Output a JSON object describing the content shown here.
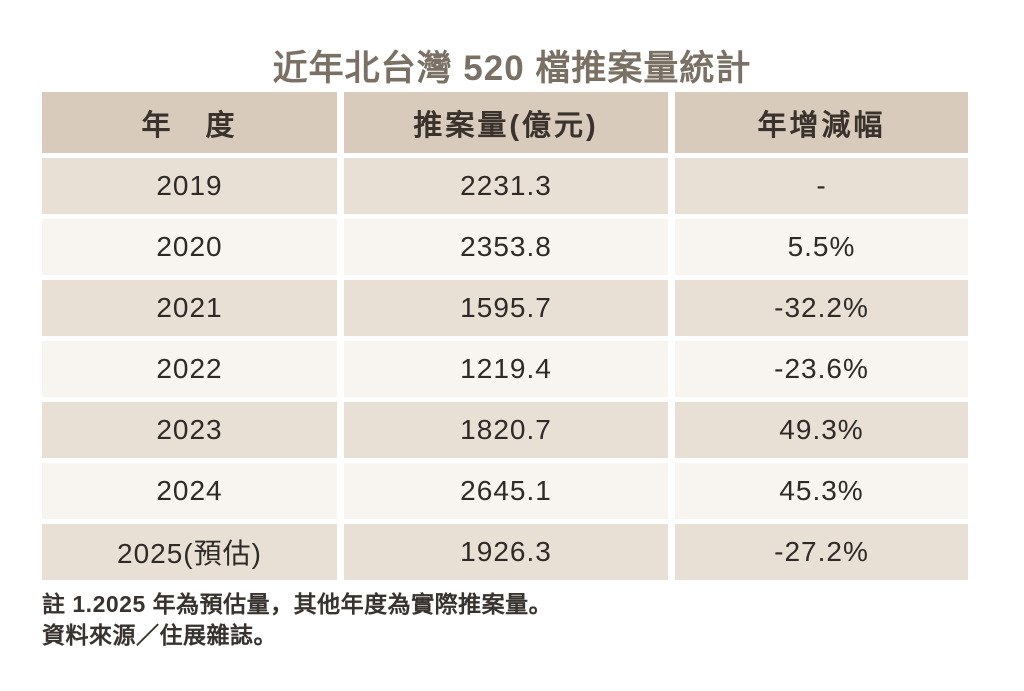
{
  "title": "近年北台灣 520 檔推案量統計",
  "table": {
    "headers": [
      "年　度",
      "推案量(億元)",
      "年增減幅"
    ],
    "rows": [
      {
        "year": "2019",
        "volume": "2231.3",
        "yoy": "-"
      },
      {
        "year": "2020",
        "volume": "2353.8",
        "yoy": "5.5%"
      },
      {
        "year": "2021",
        "volume": "1595.7",
        "yoy": "-32.2%"
      },
      {
        "year": "2022",
        "volume": "1219.4",
        "yoy": "-23.6%"
      },
      {
        "year": "2023",
        "volume": "1820.7",
        "yoy": "49.3%"
      },
      {
        "year": "2024",
        "volume": "2645.1",
        "yoy": "45.3%"
      },
      {
        "year": "2025(預估)",
        "volume": "1926.3",
        "yoy": "-27.2%"
      }
    ]
  },
  "notes": [
    "註 1.2025 年為預估量，其他年度為實際推案量。",
    "資料來源／住展雜誌。"
  ],
  "colors": {
    "background": "#ffffff",
    "title_text": "#7b7064",
    "header_bg": "#d8cbbc",
    "header_text": "#3a332d",
    "row_dark_bg": "#e8e0d5",
    "row_light_bg": "#f8f4ef",
    "cell_text": "#2d2a27",
    "note_text": "#38332e"
  },
  "chart_data": {
    "type": "table",
    "title": "近年北台灣 520 檔推案量統計",
    "columns": [
      "年度",
      "推案量(億元)",
      "年增減幅"
    ],
    "categories": [
      "2019",
      "2020",
      "2021",
      "2022",
      "2023",
      "2024",
      "2025(預估)"
    ],
    "series": [
      {
        "name": "推案量(億元)",
        "values": [
          2231.3,
          2353.8,
          1595.7,
          1219.4,
          1820.7,
          2645.1,
          1926.3
        ]
      },
      {
        "name": "年增減幅(%)",
        "values": [
          null,
          5.5,
          -32.2,
          -23.6,
          49.3,
          45.3,
          -27.2
        ]
      }
    ],
    "annotations": [
      "註 1.2025 年為預估量，其他年度為實際推案量。",
      "資料來源／住展雜誌。"
    ]
  }
}
